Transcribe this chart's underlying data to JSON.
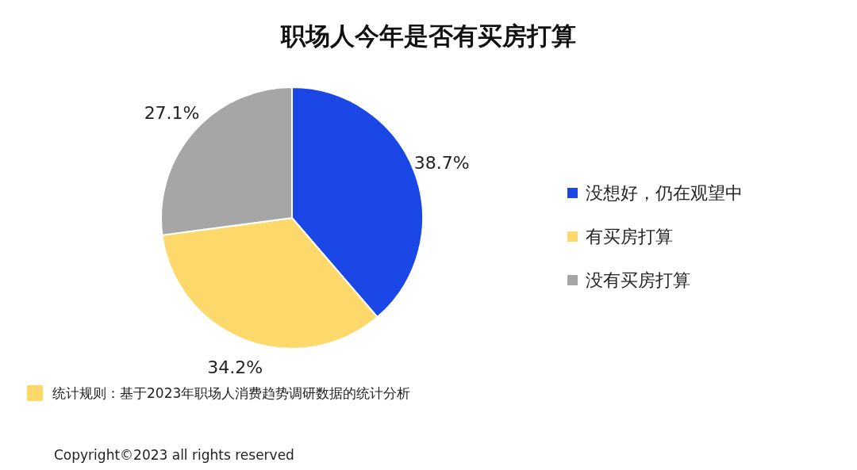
{
  "chart_data": {
    "type": "pie",
    "title": "职场人今年是否有买房打算",
    "categories": [
      "没想好，仍在观望中",
      "有买房打算",
      "没有买房打算"
    ],
    "values": [
      38.7,
      34.2,
      27.1
    ],
    "colors": [
      "#1b47e6",
      "#fdd96b",
      "#a6a6a6"
    ],
    "value_labels": [
      "38.7%",
      "34.2%",
      "27.1%"
    ],
    "legend": "right",
    "annotations": [
      "统计规则：基于2023年职场人消费趋势调研数据的统计分析",
      "Copyright©2023 all rights reserved"
    ]
  }
}
